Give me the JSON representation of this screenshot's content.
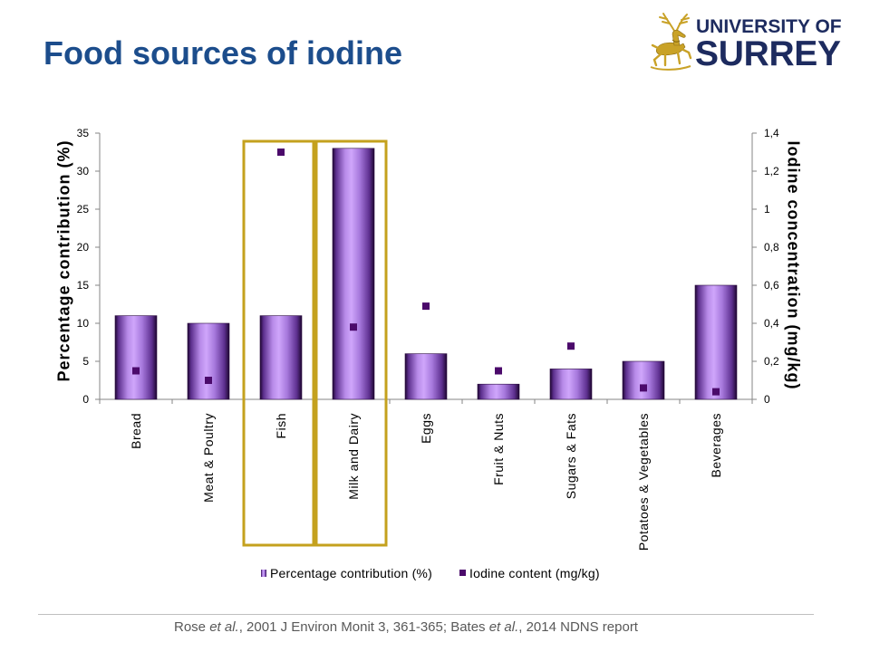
{
  "slide": {
    "title": "Food sources of iodine"
  },
  "logo": {
    "line1": "UNIVERSITY OF",
    "line2": "SURREY",
    "emblem_icon": "stag-icon",
    "color": "#1d2b5f",
    "emblem_color": "#c9a227"
  },
  "chart_data": {
    "type": "bar",
    "categories": [
      "Bread",
      "Meat & Poultry",
      "Fish",
      "Milk and Dairy",
      "Eggs",
      "Fruit & Nuts",
      "Sugars & Fats",
      "Potatoes & Vegetables",
      "Beverages"
    ],
    "series": [
      {
        "name": "Percentage contribution (%)",
        "type": "bar",
        "secondary_axis": false,
        "color": "#cfa6fb",
        "values": [
          11,
          10,
          11,
          33,
          6,
          2,
          4,
          5,
          15
        ]
      },
      {
        "name": "Iodine content (mg/kg)",
        "type": "scatter",
        "secondary_axis": true,
        "color": "#4b0a6b",
        "values": [
          0.15,
          0.1,
          1.3,
          0.38,
          0.49,
          0.15,
          0.28,
          0.06,
          0.04
        ]
      }
    ],
    "ylabel": "Percentage contribution (%)",
    "y2label": "Iodine concentration (mg/kg)",
    "ylim": [
      0,
      35
    ],
    "y2lim": [
      0,
      1.4
    ],
    "y_ticks": [
      "0",
      "5",
      "10",
      "15",
      "20",
      "25",
      "30",
      "35"
    ],
    "y2_ticks": [
      "0",
      "0,2",
      "0,4",
      "0,6",
      "0,8",
      "1",
      "1,2",
      "1,4"
    ],
    "grid": false,
    "legend": "bottom",
    "highlight_category_indices": [
      2,
      3
    ],
    "highlight_color": "#c4a11e"
  },
  "citation": {
    "parts": [
      "Rose ",
      "et al.",
      ", 2001 J Environ Monit 3, 361-365; Bates ",
      "et al.",
      ", 2014 NDNS report"
    ]
  }
}
